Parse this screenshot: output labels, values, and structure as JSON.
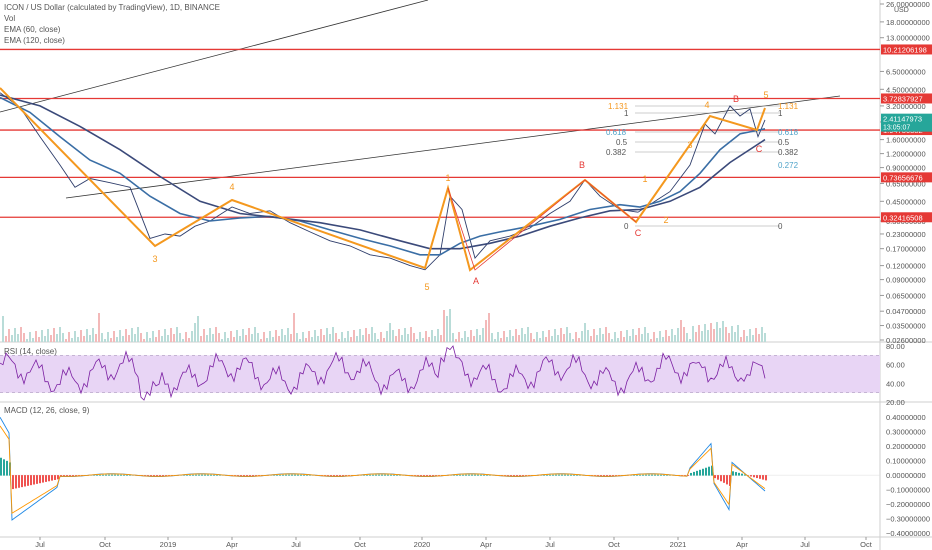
{
  "header": {
    "title": "ICON / US Dollar (calculated by TradingView), 1D, BINANCE",
    "indicators": [
      "Vol",
      "EMA (60, close)",
      "EMA (120, close)"
    ]
  },
  "rsi_label": "RSI (14, close)",
  "macd_label": "MACD (12, 26, close, 9)",
  "colors": {
    "price": "#2f3e6b",
    "ema60": "#3a6ea5",
    "ema120": "#3b4a7a",
    "wave": "#f4981e",
    "wave_label": "#f4981e",
    "abc_label": "#e53935",
    "hline": "#e53935",
    "rsi": "#7b1fa2",
    "rsi_band": "#e8d5f5",
    "macd": "#1e88e5",
    "signal": "#ff9800",
    "hist_up": "#26a69a",
    "hist_down": "#ef5350",
    "fib_gray": "#9e9e9e",
    "fib_orange": "#f4981e",
    "fib_blue": "#4fa3c9",
    "price_label_bg": "#26a69a"
  },
  "chart_data": [
    {
      "type": "line",
      "name": "price",
      "title": "ICON / US Dollar (calculated by TradingView), 1D, BINANCE",
      "scale": "log",
      "x_ticks": [
        "Jul",
        "Oct",
        "2019",
        "Apr",
        "Jul",
        "Oct",
        "2020",
        "Apr",
        "Jul",
        "Oct",
        "2021",
        "Apr",
        "Jul",
        "Oct"
      ],
      "y_ticks": [
        "26.00000000",
        "18.00000000",
        "13.00000000",
        "6.50000000",
        "4.50000000",
        "3.20000000",
        "2.30000000",
        "1.60000000",
        "1.20000000",
        "0.90000000",
        "0.65000000",
        "0.45000000",
        "0.30000000",
        "0.23000000",
        "0.17000000",
        "0.12000000",
        "0.09000000",
        "0.06500000",
        "0.04700000",
        "0.03500000",
        "0.02600000"
      ],
      "y_unit": "USD",
      "horizontal_levels": [
        "10.21206198",
        "3.72837927",
        "1.94730382",
        "0.73656676",
        "0.32416508"
      ],
      "current_price": "2.41147973",
      "countdown": "13:05:07",
      "series": [
        {
          "name": "price",
          "x": [
            0,
            20,
            40,
            60,
            75,
            90,
            110,
            130,
            150,
            165,
            180,
            195,
            210,
            232,
            250,
            270,
            290,
            310,
            330,
            350,
            370,
            390,
            410,
            425,
            440,
            450,
            462,
            475,
            490,
            510,
            530,
            550,
            570,
            585,
            600,
            620,
            638,
            655,
            670,
            690,
            705,
            715,
            730,
            740,
            750,
            758,
            765
          ],
          "y": [
            4.2,
            3.1,
            1.7,
            0.95,
            0.6,
            0.72,
            0.66,
            0.6,
            0.21,
            0.23,
            0.22,
            0.27,
            0.3,
            0.4,
            0.35,
            0.37,
            0.29,
            0.24,
            0.2,
            0.18,
            0.15,
            0.14,
            0.12,
            0.11,
            0.15,
            0.5,
            0.38,
            0.14,
            0.2,
            0.22,
            0.26,
            0.35,
            0.45,
            0.7,
            0.5,
            0.38,
            0.36,
            0.45,
            0.55,
            0.95,
            2.2,
            1.8,
            3.2,
            2.6,
            3.0,
            1.7,
            2.4
          ]
        },
        {
          "name": "EMA (60, close)",
          "x": [
            0,
            30,
            60,
            90,
            120,
            150,
            180,
            210,
            240,
            270,
            300,
            330,
            360,
            390,
            420,
            440,
            460,
            480,
            500,
            530,
            560,
            590,
            620,
            640,
            660,
            680,
            700,
            720,
            740,
            765
          ],
          "y": [
            3.8,
            2.8,
            1.7,
            1.05,
            0.8,
            0.5,
            0.35,
            0.3,
            0.32,
            0.33,
            0.3,
            0.25,
            0.21,
            0.18,
            0.15,
            0.15,
            0.19,
            0.22,
            0.24,
            0.27,
            0.31,
            0.38,
            0.42,
            0.4,
            0.45,
            0.55,
            0.8,
            1.3,
            1.8,
            2.0
          ]
        },
        {
          "name": "EMA (120, close)",
          "x": [
            0,
            40,
            80,
            120,
            160,
            200,
            240,
            280,
            320,
            360,
            400,
            430,
            460,
            490,
            520,
            550,
            580,
            610,
            640,
            670,
            700,
            730,
            765
          ],
          "y": [
            4.0,
            3.2,
            2.1,
            1.3,
            0.75,
            0.45,
            0.35,
            0.32,
            0.29,
            0.25,
            0.2,
            0.17,
            0.17,
            0.19,
            0.22,
            0.27,
            0.32,
            0.37,
            0.38,
            0.45,
            0.6,
            1.0,
            1.6
          ]
        }
      ],
      "waves": {
        "labels_orange": [
          "3",
          "4",
          "5",
          "1",
          "2",
          "3",
          "4",
          "5",
          "1"
        ],
        "labels_red": [
          "B",
          "A",
          "C",
          "B",
          "C"
        ]
      },
      "fib": {
        "gray": [
          "0",
          "0.382",
          "0.5",
          "0.618",
          "1",
          "1.131"
        ],
        "right": [
          "0",
          "0.272",
          "0.382",
          "0.5",
          "0.618",
          "1",
          "1.131"
        ]
      }
    },
    {
      "type": "line",
      "name": "RSI (14, close)",
      "y_ticks": [
        "80.00",
        "60.00",
        "40.00",
        "20.00"
      ],
      "ylim": [
        20,
        80
      ],
      "bands": [
        30,
        70
      ]
    },
    {
      "type": "line",
      "name": "MACD (12, 26, close, 9)",
      "y_ticks": [
        "0.40000000",
        "0.30000000",
        "0.20000000",
        "0.10000000",
        "0.00000000",
        "−0.10000000",
        "−0.20000000",
        "−0.30000000",
        "−0.40000000"
      ],
      "ylim": [
        -0.4,
        0.45
      ]
    }
  ]
}
